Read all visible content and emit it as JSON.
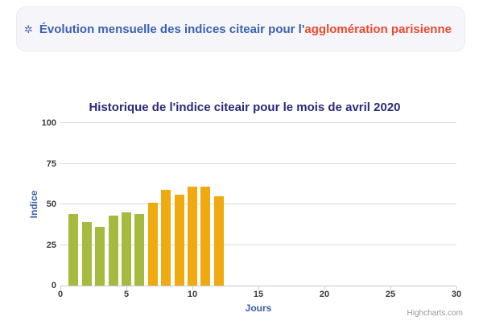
{
  "banner": {
    "icon": "✲",
    "text_primary": "Évolution mensuelle des indices citeair pour l'",
    "text_highlight": "agglomération parisienne"
  },
  "chart": {
    "credit": "Highcharts.com"
  },
  "chart_data": {
    "type": "bar",
    "title": "Historique de l'indice citeair pour le mois de avril 2020",
    "xlabel": "Jours",
    "ylabel": "Indice",
    "xlim": [
      0,
      30
    ],
    "ylim": [
      0,
      100
    ],
    "x_ticks": [
      0,
      5,
      10,
      15,
      20,
      25,
      30
    ],
    "y_ticks": [
      0,
      25,
      50,
      75,
      100
    ],
    "grid": true,
    "legend": "none",
    "days": [
      1,
      2,
      3,
      4,
      5,
      6,
      7,
      8,
      9,
      10,
      11,
      12
    ],
    "values": [
      44,
      39,
      36,
      43,
      45,
      44,
      51,
      59,
      56,
      61,
      61,
      55
    ],
    "bar_colors": [
      "#a6ba3f",
      "#a6ba3f",
      "#a6ba3f",
      "#a6ba3f",
      "#a6ba3f",
      "#a6ba3f",
      "#eeaa0e",
      "#eeaa0e",
      "#eeaa0e",
      "#eeaa0e",
      "#eeaa0e",
      "#eeaa0e"
    ]
  }
}
